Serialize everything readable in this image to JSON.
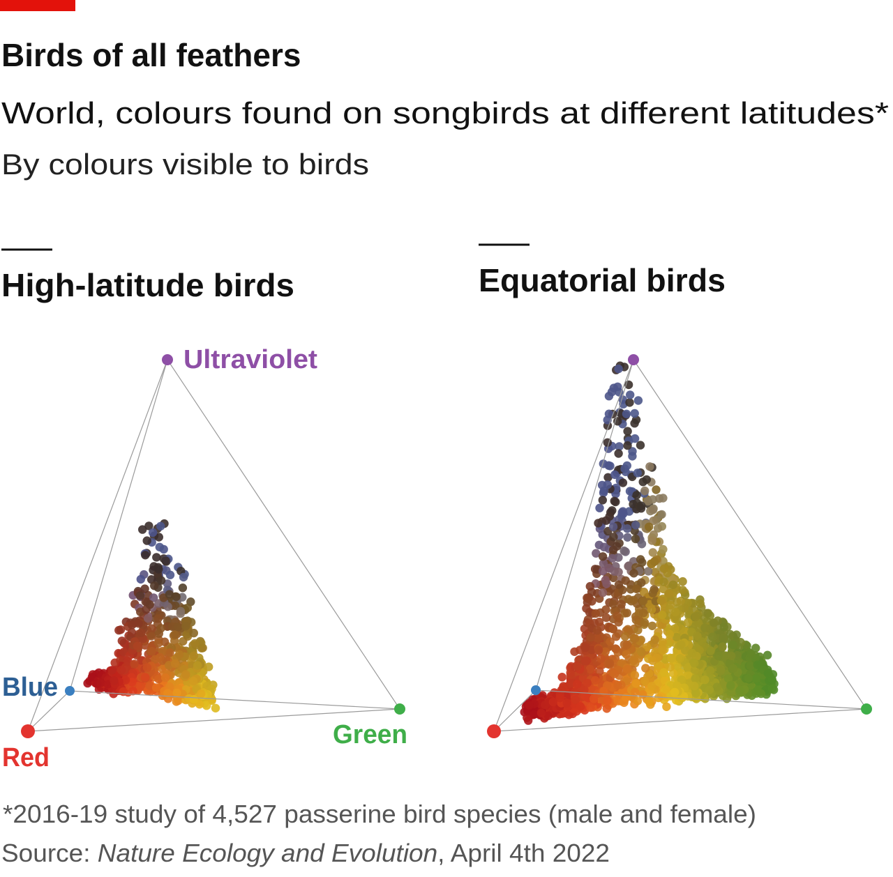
{
  "header": {
    "title": "Birds of all feathers",
    "subtitle": "World, colours found on songbirds at different latitudes*",
    "description": "By colours visible to birds"
  },
  "panels": [
    {
      "title": "High-latitude birds",
      "vertices": {
        "ultraviolet": "Ultraviolet",
        "blue": "Blue",
        "red": "Red",
        "green": "Green"
      }
    },
    {
      "title": "Equatorial birds"
    }
  ],
  "footer": {
    "note": "*2016-19 study of 4,527 passerine bird species (male and female)",
    "source_prefix": "Source: ",
    "source_title": "Nature Ecology and Evolution",
    "source_suffix": ", April 4th 2022"
  }
}
